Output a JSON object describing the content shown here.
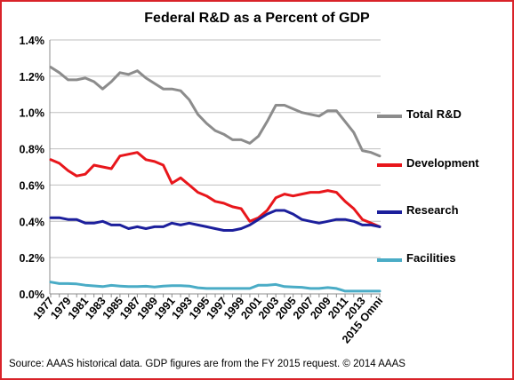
{
  "chart_data": {
    "type": "line",
    "title": "Federal R&D as a Percent of GDP",
    "xlabel": "",
    "ylabel": "",
    "ylim": [
      0,
      1.4
    ],
    "y_ticks": [
      "0.0%",
      "0.2%",
      "0.4%",
      "0.6%",
      "0.8%",
      "1.0%",
      "1.2%",
      "1.4%"
    ],
    "grid": true,
    "legend_placement": "right",
    "categories": [
      "1977",
      "1978",
      "1979",
      "1980",
      "1981",
      "1982",
      "1983",
      "1984",
      "1985",
      "1986",
      "1987",
      "1988",
      "1989",
      "1990",
      "1991",
      "1992",
      "1993",
      "1994",
      "1995",
      "1996",
      "1997",
      "1998",
      "1999",
      "2000",
      "2001",
      "2002",
      "2003",
      "2004",
      "2005",
      "2006",
      "2007",
      "2008",
      "2009",
      "2010",
      "2011",
      "2012",
      "2013",
      "2014",
      "2015 Omni"
    ],
    "x_tick_labels": [
      "1977",
      "",
      "1979",
      "",
      "1981",
      "",
      "1983",
      "",
      "1985",
      "",
      "1987",
      "",
      "1989",
      "",
      "1991",
      "",
      "1993",
      "",
      "1995",
      "",
      "1997",
      "",
      "1999",
      "",
      "2001",
      "",
      "2003",
      "",
      "2005",
      "",
      "2007",
      "",
      "2009",
      "",
      "2011",
      "",
      "2013",
      "",
      "2015 Omni"
    ],
    "series": [
      {
        "name": "Total R&D",
        "color": "#8c8c8c",
        "values": [
          1.25,
          1.22,
          1.18,
          1.18,
          1.19,
          1.17,
          1.13,
          1.17,
          1.22,
          1.21,
          1.23,
          1.19,
          1.16,
          1.13,
          1.13,
          1.12,
          1.07,
          0.99,
          0.94,
          0.9,
          0.88,
          0.85,
          0.85,
          0.83,
          0.87,
          0.95,
          1.04,
          1.04,
          1.02,
          1.0,
          0.99,
          0.98,
          1.01,
          1.01,
          0.95,
          0.89,
          0.79,
          0.78,
          0.76
        ]
      },
      {
        "name": "Development",
        "color": "#e8161b",
        "values": [
          0.74,
          0.72,
          0.68,
          0.65,
          0.66,
          0.71,
          0.7,
          0.69,
          0.76,
          0.77,
          0.78,
          0.74,
          0.73,
          0.71,
          0.61,
          0.64,
          0.6,
          0.56,
          0.54,
          0.51,
          0.5,
          0.48,
          0.47,
          0.4,
          0.42,
          0.46,
          0.53,
          0.55,
          0.54,
          0.55,
          0.56,
          0.56,
          0.57,
          0.56,
          0.51,
          0.47,
          0.41,
          0.39,
          0.37
        ]
      },
      {
        "name": "Research",
        "color": "#1c1f9c",
        "values": [
          0.42,
          0.42,
          0.41,
          0.41,
          0.39,
          0.39,
          0.4,
          0.38,
          0.38,
          0.36,
          0.37,
          0.36,
          0.37,
          0.37,
          0.39,
          0.38,
          0.39,
          0.38,
          0.37,
          0.36,
          0.35,
          0.35,
          0.36,
          0.38,
          0.41,
          0.44,
          0.46,
          0.46,
          0.44,
          0.41,
          0.4,
          0.39,
          0.4,
          0.41,
          0.41,
          0.4,
          0.38,
          0.38,
          0.37
        ]
      },
      {
        "name": "Facilities",
        "color": "#4aacc6",
        "values": [
          0.065,
          0.057,
          0.057,
          0.055,
          0.048,
          0.044,
          0.04,
          0.047,
          0.043,
          0.04,
          0.04,
          0.042,
          0.038,
          0.043,
          0.045,
          0.045,
          0.043,
          0.034,
          0.03,
          0.03,
          0.03,
          0.03,
          0.03,
          0.03,
          0.048,
          0.048,
          0.052,
          0.04,
          0.038,
          0.036,
          0.03,
          0.03,
          0.035,
          0.03,
          0.015,
          0.015,
          0.015,
          0.015,
          0.015
        ]
      }
    ],
    "source_note": "Source: AAAS  historical data. GDP figures are from the FY 2015 request. © 2014 AAAS"
  }
}
